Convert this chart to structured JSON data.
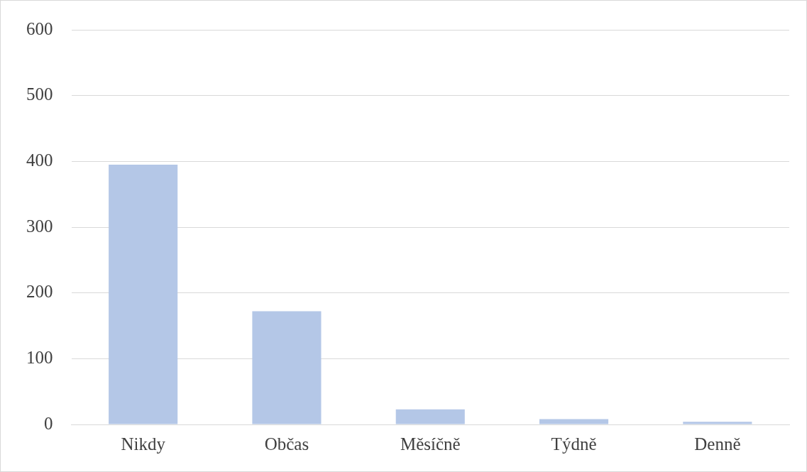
{
  "chart_data": {
    "type": "bar",
    "categories": [
      "Nikdy",
      "Občas",
      "Měsíčně",
      "Týdně",
      "Denně"
    ],
    "values": [
      395,
      172,
      23,
      8,
      4
    ],
    "color": "#b4c7e7",
    "ylim": [
      0,
      600
    ],
    "yticks": [
      0,
      100,
      200,
      300,
      400,
      500,
      600
    ],
    "grid": "y"
  }
}
